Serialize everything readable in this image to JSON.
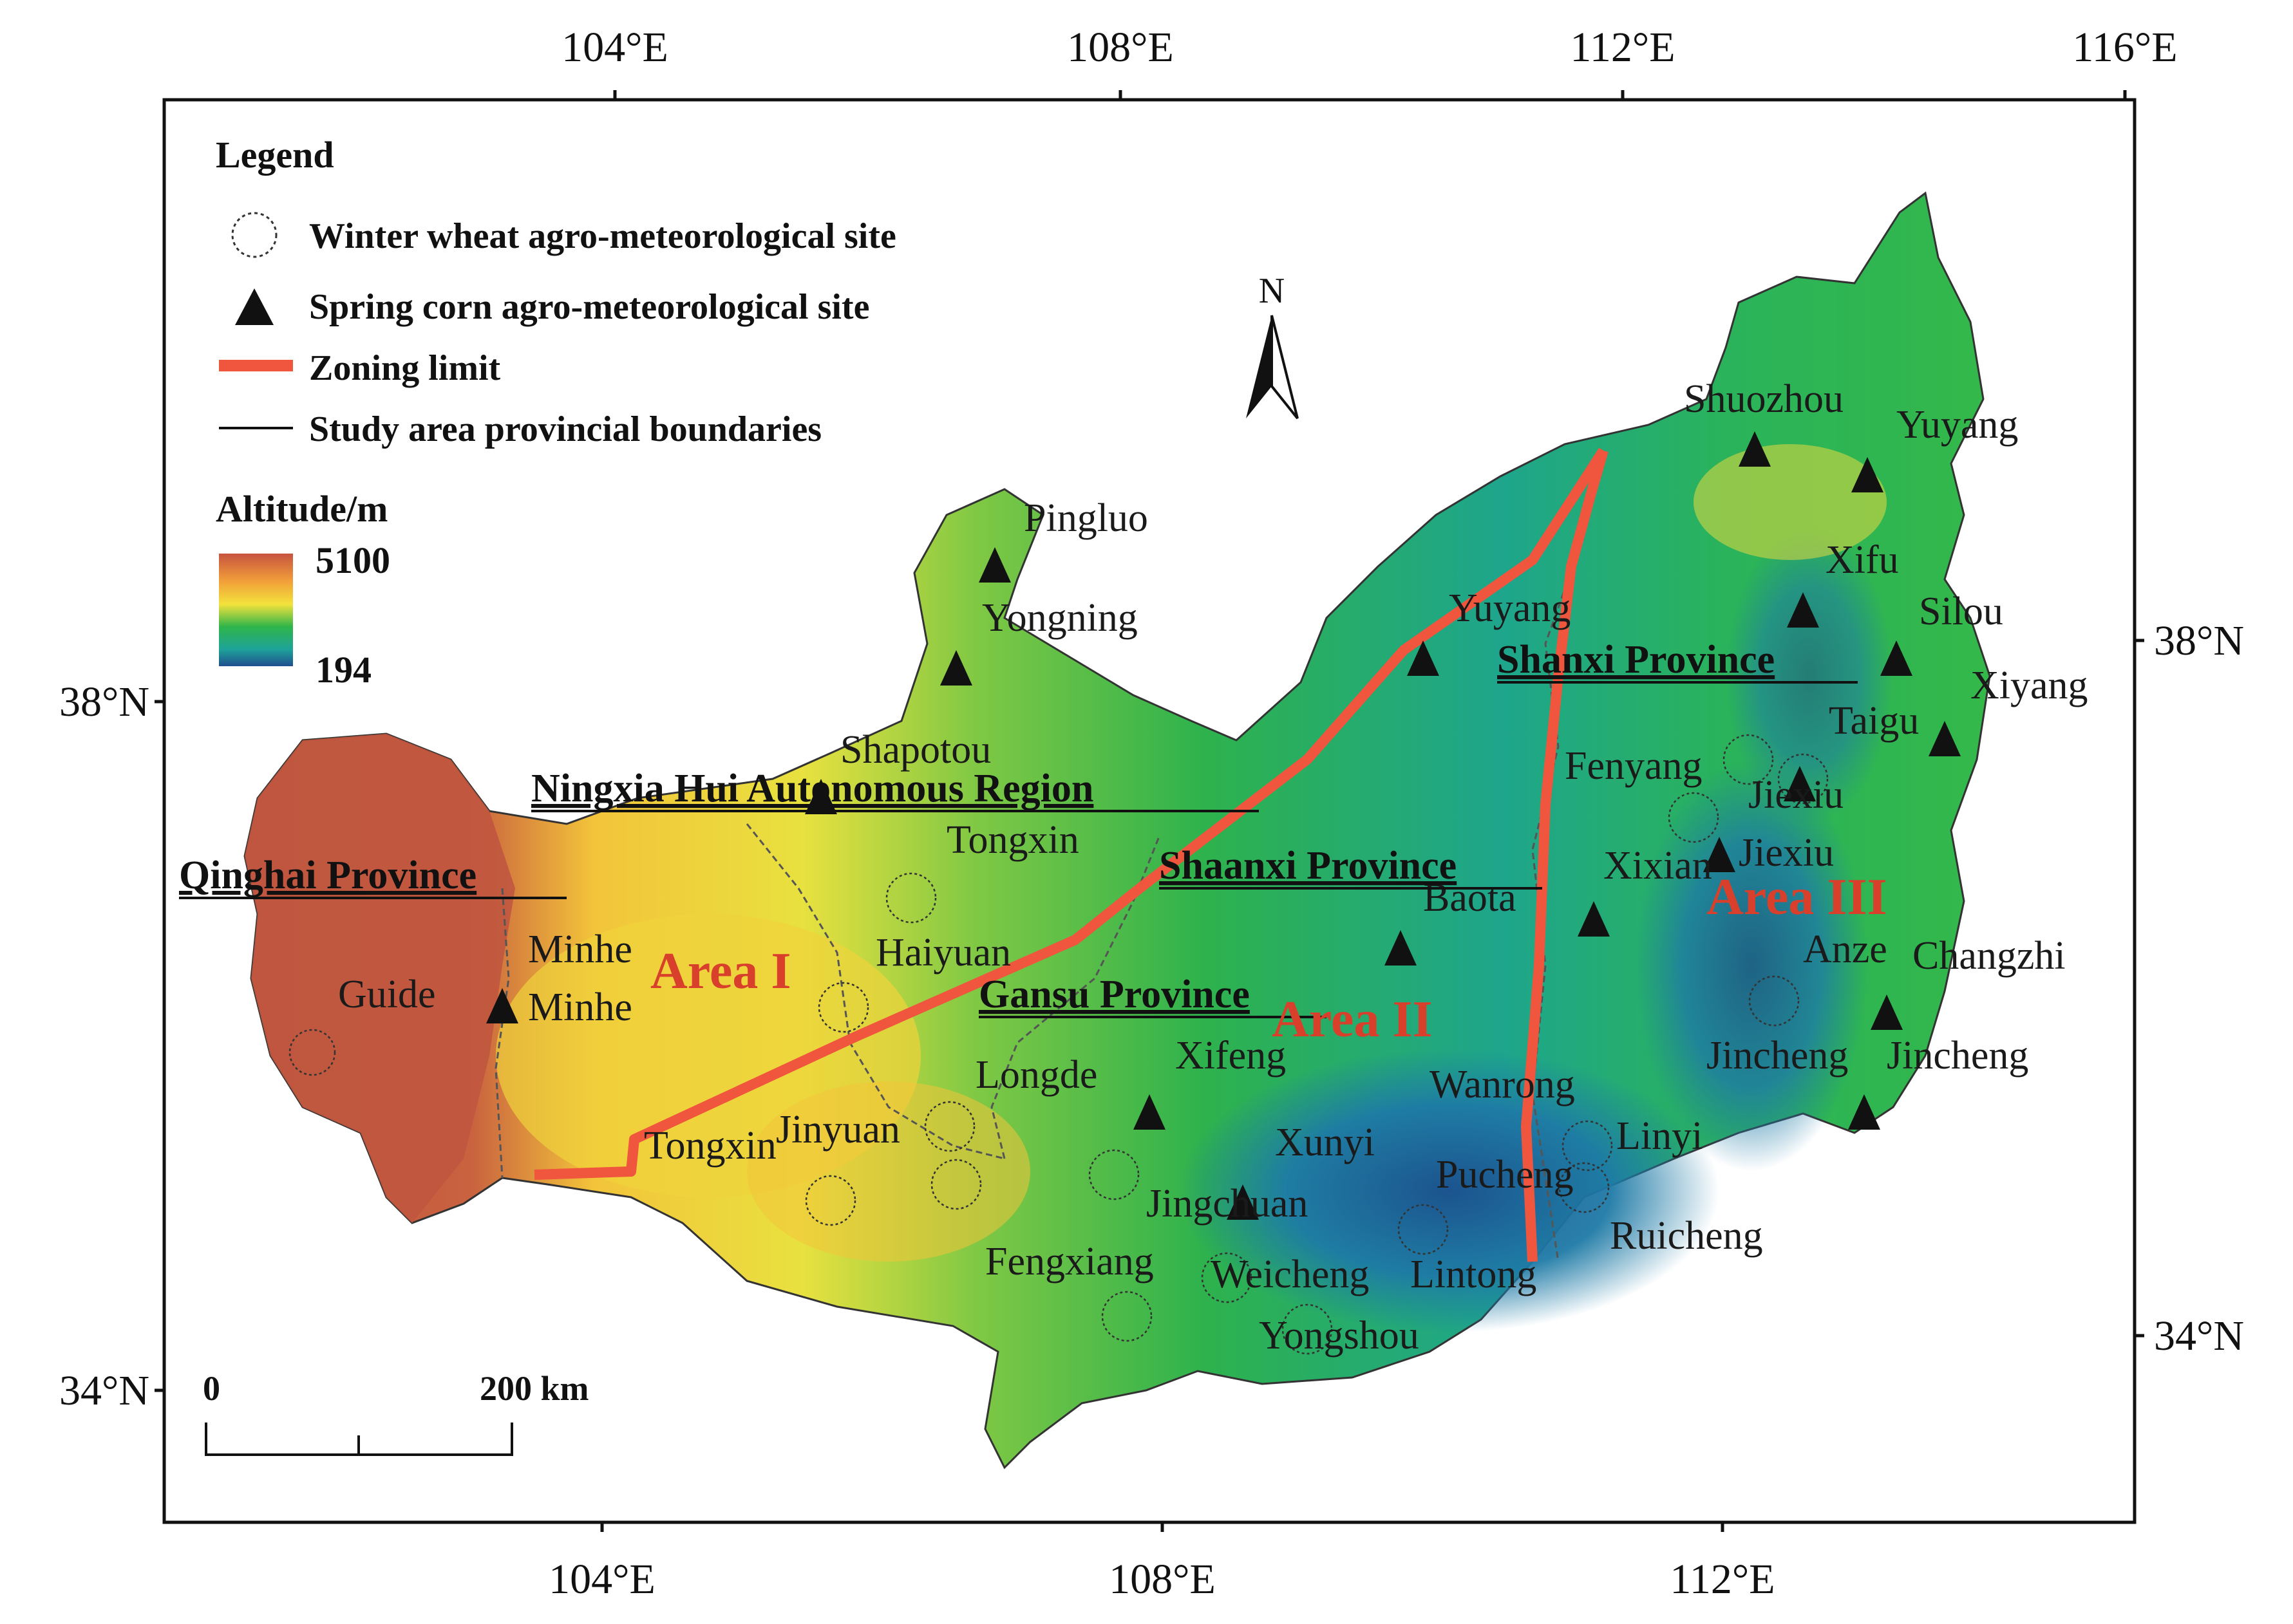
{
  "map": {
    "axes": {
      "top_lon": [
        "104°E",
        "108°E",
        "112°E",
        "116°E"
      ],
      "bottom_lon": [
        "104°E",
        "108°E",
        "112°E"
      ],
      "left_lat": [
        "38°N",
        "34°N"
      ],
      "right_lat": [
        "38°N",
        "34°N"
      ]
    },
    "legend": {
      "title": "Legend",
      "winter_wheat": "Winter wheat agro-meteorological site",
      "spring_corn": "Spring corn agro-meteorological site",
      "zoning_limit": "Zoning limit",
      "boundaries": "Study area provincial boundaries",
      "altitude_title": "Altitude/m",
      "altitude_max": "5100",
      "altitude_min": "194"
    },
    "north_label": "N",
    "scale_bar": {
      "start": "0",
      "end": "200 km"
    },
    "provinces": {
      "qinghai": "Qinghai Province",
      "ningxia": "Ningxia Hui Autonomous Region",
      "shaanxi": "Shaanxi Province",
      "gansu": "Gansu Province",
      "shanxi": "Shanxi Province"
    },
    "areas": {
      "area1": "Area I",
      "area2": "Area II",
      "area3": "Area III"
    },
    "sites": {
      "pingluo": "Pingluo",
      "yongning": "Yongning",
      "shapotou": "Shapotou",
      "tongxin_n": "Tongxin",
      "haiyuan": "Haiyuan",
      "minhe1": "Minhe",
      "minhe2": "Minhe",
      "guide": "Guide",
      "tongxin_s": "Tongxin",
      "jinyuan": "Jinyuan",
      "longde": "Longde",
      "xifeng": "Xifeng",
      "xunyi": "Xunyi",
      "jingchuan": "Jingchuan",
      "fengxiang": "Fengxiang",
      "weicheng": "Weicheng",
      "lintong": "Lintong",
      "yongshou": "Yongshou",
      "pucheng": "Pucheng",
      "wanrong": "Wanrong",
      "linyi": "Linyi",
      "ruicheng": "Ruicheng",
      "baota": "Baota",
      "yuyang_mid": "Yuyang",
      "shuozhou": "Shuozhou",
      "yuyang_ne": "Yuyang",
      "xifu": "Xifu",
      "silou": "Silou",
      "xiyang": "Xiyang",
      "taigu": "Taigu",
      "fenyang": "Fenyang",
      "jiexiu1": "Jiexiu",
      "jiexiu2": "Jiexiu",
      "xixian": "Xixian",
      "anze": "Anze",
      "changzhi": "Changzhi",
      "jincheng1": "Jincheng",
      "jincheng2": "Jincheng"
    },
    "colors": {
      "zoning_limit": "#f0553d",
      "area_label": "#d8402c",
      "alt_high": "#c0563f",
      "alt_mid_high": "#f3d23a",
      "alt_mid": "#2fb54a",
      "alt_low": "#1f5f9a"
    }
  }
}
